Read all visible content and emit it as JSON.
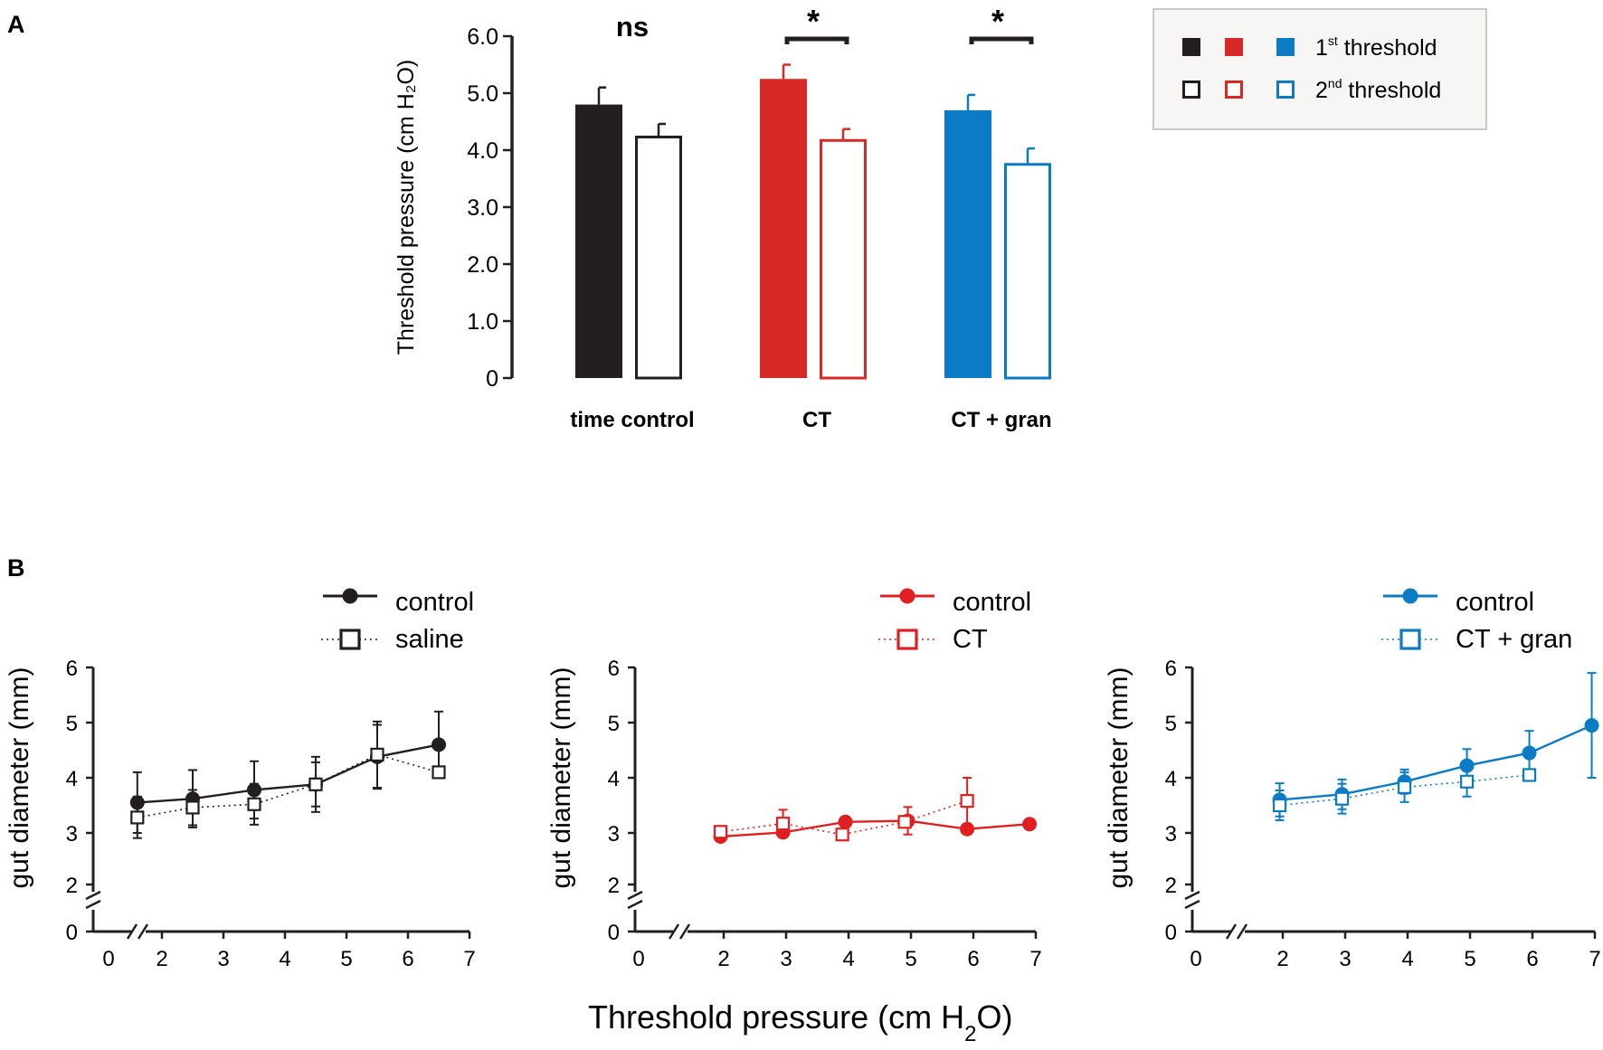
{
  "panel_labels": {
    "a": "A",
    "b": "B"
  },
  "colors": {
    "black": "#231f20",
    "red": "#e02020",
    "red_fill": "#d72a27",
    "blue": "#0a7bc4"
  },
  "chart_data": [
    {
      "type": "bar",
      "panel": "A",
      "ylabel": "Threshold pressure (cm H₂O)",
      "ylim": [
        0,
        6
      ],
      "yticks": [
        "0",
        "1.0",
        "2.0",
        "3.0",
        "4.0",
        "5.0",
        "6.0"
      ],
      "groups": [
        {
          "label": "time control",
          "significance": "ns",
          "color": "#231f20",
          "first": 4.8,
          "first_err": 0.3,
          "second": 4.23,
          "second_err": 0.23
        },
        {
          "label": "CT",
          "significance": "*",
          "color": "#d72a27",
          "first": 5.25,
          "first_err": 0.25,
          "second": 4.17,
          "second_err": 0.2
        },
        {
          "label": "CT + gran",
          "significance": "*",
          "color": "#0a7bc4",
          "first": 4.7,
          "first_err": 0.27,
          "second": 3.75,
          "second_err": 0.28
        }
      ],
      "legend": {
        "first_base": "1",
        "first_sup": "st",
        "first_rest": " threshold",
        "second_base": "2",
        "second_sup": "nd",
        "second_rest": " threshold"
      }
    },
    {
      "type": "line",
      "panel": "B1",
      "ylabel": "gut diameter (mm)",
      "yticks": [
        "0",
        "2",
        "3",
        "4",
        "5",
        "6"
      ],
      "xticks": [
        "0",
        "2",
        "3",
        "4",
        "5",
        "6",
        "7"
      ],
      "color": "#231f20",
      "series": [
        {
          "name": "control",
          "style": "solid-circle",
          "x": [
            1.6,
            2.5,
            3.5,
            4.5,
            5.5,
            6.5
          ],
          "y": [
            3.55,
            3.62,
            3.78,
            3.88,
            4.38,
            4.6
          ],
          "err": [
            0.55,
            0.52,
            0.52,
            0.5,
            0.58,
            0.6
          ]
        },
        {
          "name": "saline",
          "style": "dotted-square",
          "x": [
            1.6,
            2.5,
            3.5,
            4.5,
            5.5,
            6.5
          ],
          "y": [
            3.28,
            3.46,
            3.52,
            3.88,
            4.42,
            4.1
          ],
          "err": [
            0.38,
            0.32,
            0.37,
            0.4,
            0.6,
            0.0
          ]
        }
      ]
    },
    {
      "type": "line",
      "panel": "B2",
      "ylabel": "gut diameter (mm)",
      "yticks": [
        "0",
        "2",
        "3",
        "4",
        "5",
        "6"
      ],
      "xticks": [
        "0",
        "2",
        "3",
        "4",
        "5",
        "6",
        "7"
      ],
      "color": "#e02020",
      "series": [
        {
          "name": "control",
          "style": "solid-circle",
          "x": [
            1.95,
            2.95,
            3.95,
            4.95,
            5.9,
            6.9
          ],
          "y": [
            2.93,
            3.01,
            3.2,
            3.22,
            3.07,
            3.16
          ],
          "err": [
            0.0,
            0.0,
            0.0,
            0.25,
            0.0,
            0.0
          ]
        },
        {
          "name": "CT",
          "style": "dotted-square",
          "x": [
            1.95,
            2.95,
            3.9,
            4.9,
            5.9
          ],
          "y": [
            3.02,
            3.17,
            2.97,
            3.2,
            3.58
          ],
          "err": [
            0.0,
            0.25,
            0.0,
            0.0,
            0.42
          ]
        }
      ]
    },
    {
      "type": "line",
      "panel": "B3",
      "ylabel": "gut diameter (mm)",
      "yticks": [
        "0",
        "2",
        "3",
        "4",
        "5",
        "6"
      ],
      "xticks": [
        "0",
        "2",
        "3",
        "4",
        "5",
        "6",
        "7"
      ],
      "color": "#0a7bc4",
      "series": [
        {
          "name": "control",
          "style": "solid-circle",
          "x": [
            1.95,
            2.95,
            3.95,
            4.95,
            5.95,
            6.95
          ],
          "y": [
            3.6,
            3.7,
            3.93,
            4.22,
            4.45,
            4.95
          ],
          "err": [
            0.3,
            0.27,
            0.22,
            0.3,
            0.4,
            0.95
          ]
        },
        {
          "name": "CT + gran",
          "style": "dotted-square",
          "x": [
            1.95,
            2.95,
            3.95,
            4.95,
            5.95
          ],
          "y": [
            3.5,
            3.62,
            3.83,
            3.93,
            4.05
          ],
          "err": [
            0.27,
            0.27,
            0.27,
            0.27,
            0.0
          ]
        }
      ]
    }
  ],
  "shared_xlabel_prefix": "Threshold pressure (cm H",
  "shared_xlabel_sub": "2",
  "shared_xlabel_suffix": "O)"
}
